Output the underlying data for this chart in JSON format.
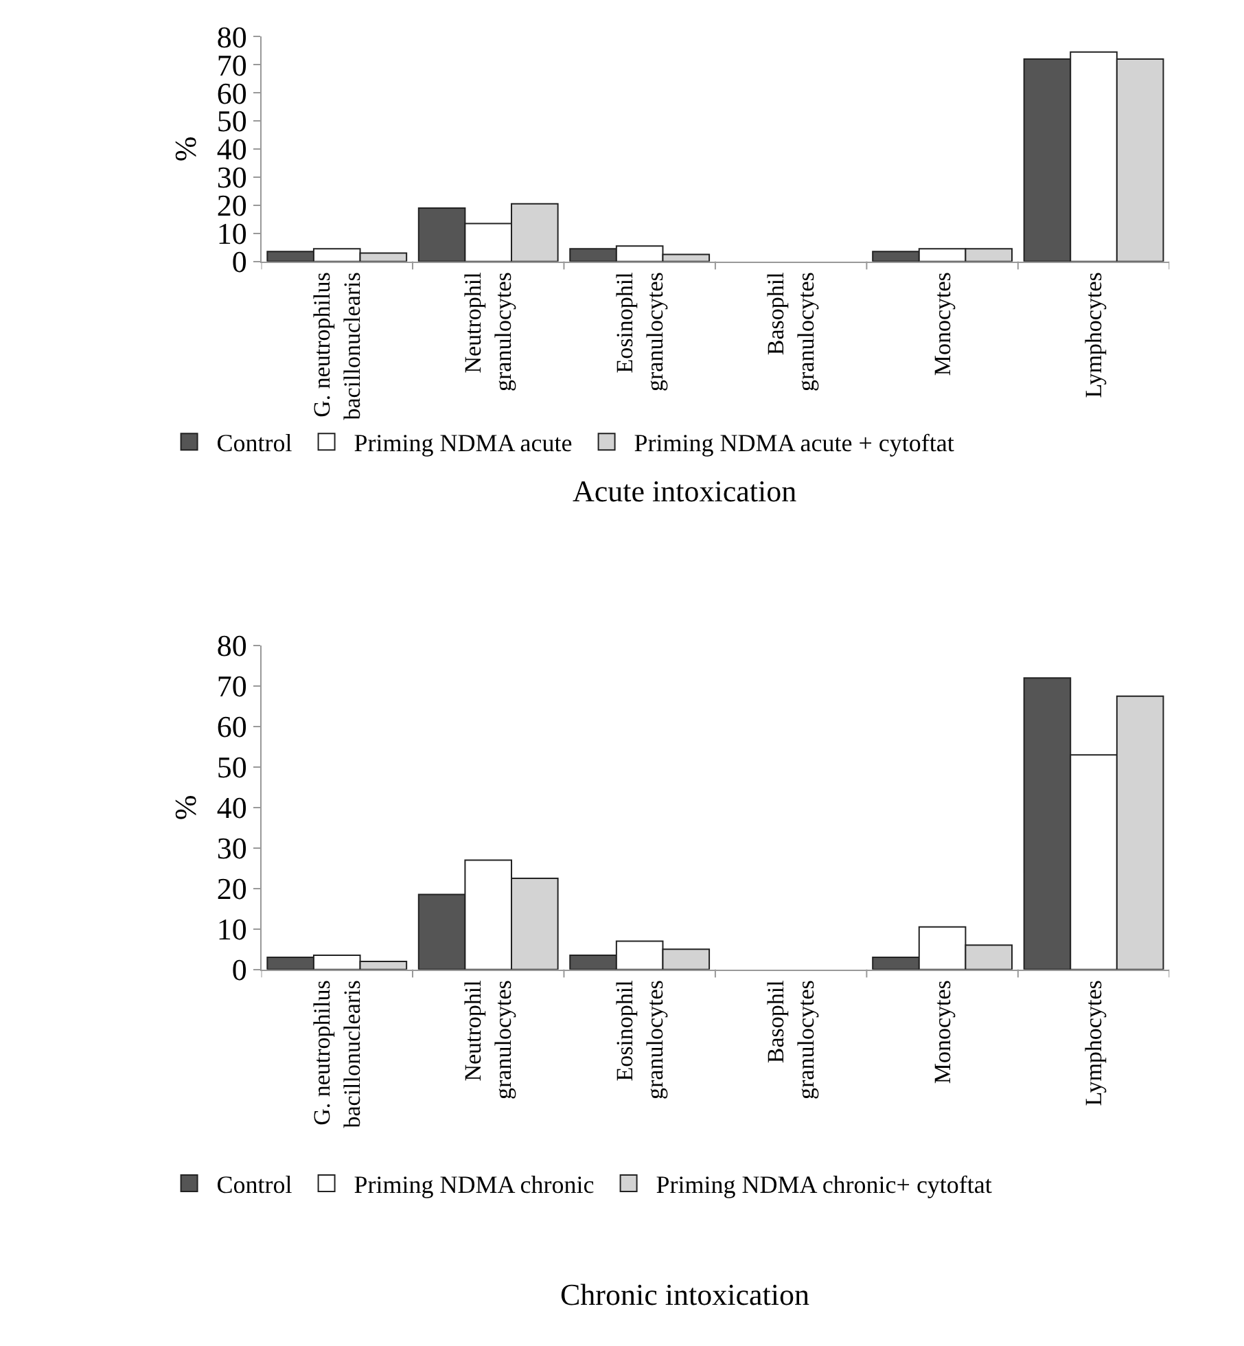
{
  "chart_data": [
    {
      "type": "bar",
      "title": "Acute intoxication",
      "ylabel": "%",
      "categories": [
        "G. neutrophilus bacillonuclearis",
        "Neutrophil granulocytes",
        "Eosinophil granulocytes",
        "Basophil granulocytes",
        "Monocytes",
        "Lymphocytes"
      ],
      "ylim": [
        0,
        80
      ],
      "yticks": [
        0,
        10,
        20,
        30,
        40,
        50,
        60,
        70,
        80
      ],
      "legend": "bottom",
      "series": [
        {
          "name": "Control",
          "color": "#555555",
          "values": [
            3.5,
            19,
            4.5,
            null,
            3.5,
            72
          ]
        },
        {
          "name": "Priming NDMA acute",
          "color": "#ffffff",
          "values": [
            4.5,
            13.5,
            5.5,
            null,
            4.5,
            74.5
          ]
        },
        {
          "name": "Priming NDMA acute + cytoftat",
          "color": "#d3d3d3",
          "values": [
            3,
            20.5,
            2.5,
            null,
            4.5,
            72
          ]
        }
      ]
    },
    {
      "type": "bar",
      "title": "Chronic intoxication",
      "ylabel": "%",
      "categories": [
        "G. neutrophilus bacillonuclearis",
        "Neutrophil granulocytes",
        "Eosinophil granulocytes",
        "Basophil granulocytes",
        "Monocytes",
        "Lymphocytes"
      ],
      "ylim": [
        0,
        80
      ],
      "yticks": [
        0,
        10,
        20,
        30,
        40,
        50,
        60,
        70,
        80
      ],
      "legend": "bottom",
      "series": [
        {
          "name": "Control",
          "color": "#555555",
          "values": [
            3,
            18.5,
            3.5,
            null,
            3,
            72
          ]
        },
        {
          "name": "Priming NDMA chronic",
          "color": "#ffffff",
          "values": [
            3.5,
            27,
            7,
            null,
            10.5,
            53
          ]
        },
        {
          "name": "Priming NDMA chronic+ cytoftat",
          "color": "#d3d3d3",
          "values": [
            2,
            22.5,
            5,
            null,
            6,
            67.5
          ]
        }
      ]
    }
  ]
}
